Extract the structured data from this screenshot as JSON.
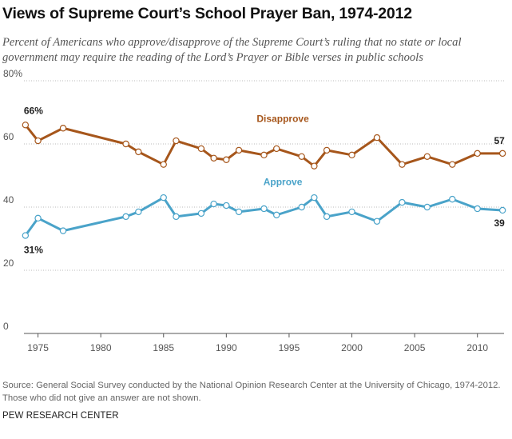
{
  "title": "Views of Supreme Court’s School Prayer Ban, 1974-2012",
  "subtitle": "Percent of Americans who approve/disapprove of the Supreme Court’s ruling that no state or local government may require the reading of the Lord’s Prayer or Bible verses in public schools",
  "source": "Source: General Social Survey conducted by the National Opinion Research Center at the University of Chicago, 1974-2012. Those who did not give an answer are not shown.",
  "brand": "PEW RESEARCH CENTER",
  "colors": {
    "disapprove": "#a6561b",
    "approve": "#4aa3c9",
    "grid": "#bbbbbb",
    "axis": "#555555"
  },
  "chart_data": {
    "type": "line",
    "title": "Views of Supreme Court’s School Prayer Ban, 1974-2012",
    "xlabel": "",
    "ylabel": "",
    "xlim": [
      1974,
      2012
    ],
    "ylim": [
      0,
      80
    ],
    "yticks": [
      0,
      20,
      40,
      60,
      80
    ],
    "ytick_labels": [
      "0",
      "20",
      "40",
      "60",
      "80%"
    ],
    "xticks": [
      1975,
      1980,
      1985,
      1990,
      1995,
      2000,
      2005,
      2010
    ],
    "xtick_labels": [
      "1975",
      "1980",
      "1985",
      "1990",
      "1995",
      "2000",
      "2005",
      "2010"
    ],
    "grid": "horizontal-dotted",
    "x": [
      1974,
      1975,
      1977,
      1982,
      1983,
      1985,
      1986,
      1988,
      1989,
      1990,
      1991,
      1993,
      1994,
      1996,
      1997,
      1998,
      2000,
      2002,
      2004,
      2006,
      2008,
      2010,
      2012
    ],
    "series": [
      {
        "name": "Disapprove",
        "values": [
          66,
          61,
          65,
          60,
          57.5,
          53.5,
          61,
          58.5,
          55.5,
          55,
          58,
          56.5,
          58.5,
          56,
          53,
          58,
          56.5,
          62,
          53.5,
          56,
          53.5,
          57,
          57
        ],
        "label_value": "66%",
        "end_label": "57"
      },
      {
        "name": "Approve",
        "values": [
          31,
          36.5,
          32.5,
          37,
          38.5,
          43,
          37,
          38,
          41,
          40.5,
          38.5,
          39.5,
          37.5,
          40,
          43,
          37,
          38.5,
          35.5,
          41.5,
          40,
          42.5,
          39.5,
          39
        ],
        "label_value": "31%",
        "end_label": "39"
      }
    ]
  }
}
